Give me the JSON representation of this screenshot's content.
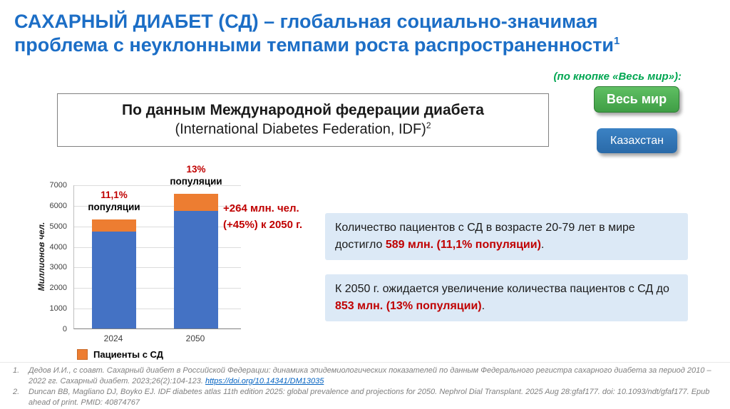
{
  "title": {
    "line1": "САХАРНЫЙ ДИАБЕТ (СД) – глобальная социально-значимая",
    "line2": "проблема с неуклонными темпами роста распространенности",
    "sup": "1",
    "color": "#1C6EC6"
  },
  "hint": "(по кнопке «Весь мир»):",
  "buttons": {
    "world": {
      "label": "Весь мир",
      "color": "#4CAF50"
    },
    "kazakhstan": {
      "label": "Казахстан",
      "color": "#2E75B6"
    }
  },
  "idf_box": {
    "line1": "По данным Международной федерации диабета",
    "line2": "(International Diabetes Federation, IDF)",
    "sup": "2"
  },
  "chart_data": {
    "type": "bar",
    "stacked": true,
    "categories": [
      "2024",
      "2050"
    ],
    "series": [
      {
        "name": "",
        "color": "#4472C4",
        "values": [
          4717,
          5709
        ]
      },
      {
        "name": "Пациенты с СД",
        "color": "#ED7D31",
        "values": [
          589,
          853
        ]
      }
    ],
    "ylabel": "Миллионов чел.",
    "ylim": [
      0,
      7000
    ],
    "yticks": [
      0,
      1000,
      2000,
      3000,
      4000,
      5000,
      6000,
      7000
    ],
    "grid": true,
    "legend": {
      "label": "Пациенты с СД",
      "color": "#ED7D31",
      "position": "bottom"
    },
    "bar_annotations": [
      {
        "category": "2024",
        "percent": "11,1%",
        "text": "популяции"
      },
      {
        "category": "2050",
        "percent": "13%",
        "text": "популяции"
      }
    ]
  },
  "growth_note": {
    "line1": "+264 млн. чел.",
    "line2": "(+45%) к 2050 г.",
    "color": "#C00000"
  },
  "info_boxes": [
    {
      "prefix": "Количество пациентов с СД в возрасте 20-79 лет в мире достигло ",
      "highlight": "589 млн. (11,1% популяции)",
      "suffix": "."
    },
    {
      "prefix": "К 2050 г. ожидается увеличение количества пациентов с СД до ",
      "highlight": "853 млн. (13% популяции)",
      "suffix": "."
    }
  ],
  "footnotes": [
    {
      "num": "1.",
      "text": "Дедов И.И., с соавт. Сахарный диабет в Российской Федерации: динамика эпидемиологических показателей по данным Федерального регистра сахарного диабета за период 2010 – 2022 гг. Сахарный диабет. 2023;26(2):104-123. ",
      "link": "https://doi.org/10.14341/DM13035"
    },
    {
      "num": "2.",
      "text": "Duncan BB, Magliano DJ, Boyko EJ. IDF diabetes atlas 11th edition 2025: global prevalence and projections for 2050. Nephrol Dial Transplant. 2025 Aug 28:gfaf177. doi: 10.1093/ndt/gfaf177. Epub ahead of print. PMID: 40874767",
      "link": ""
    }
  ]
}
